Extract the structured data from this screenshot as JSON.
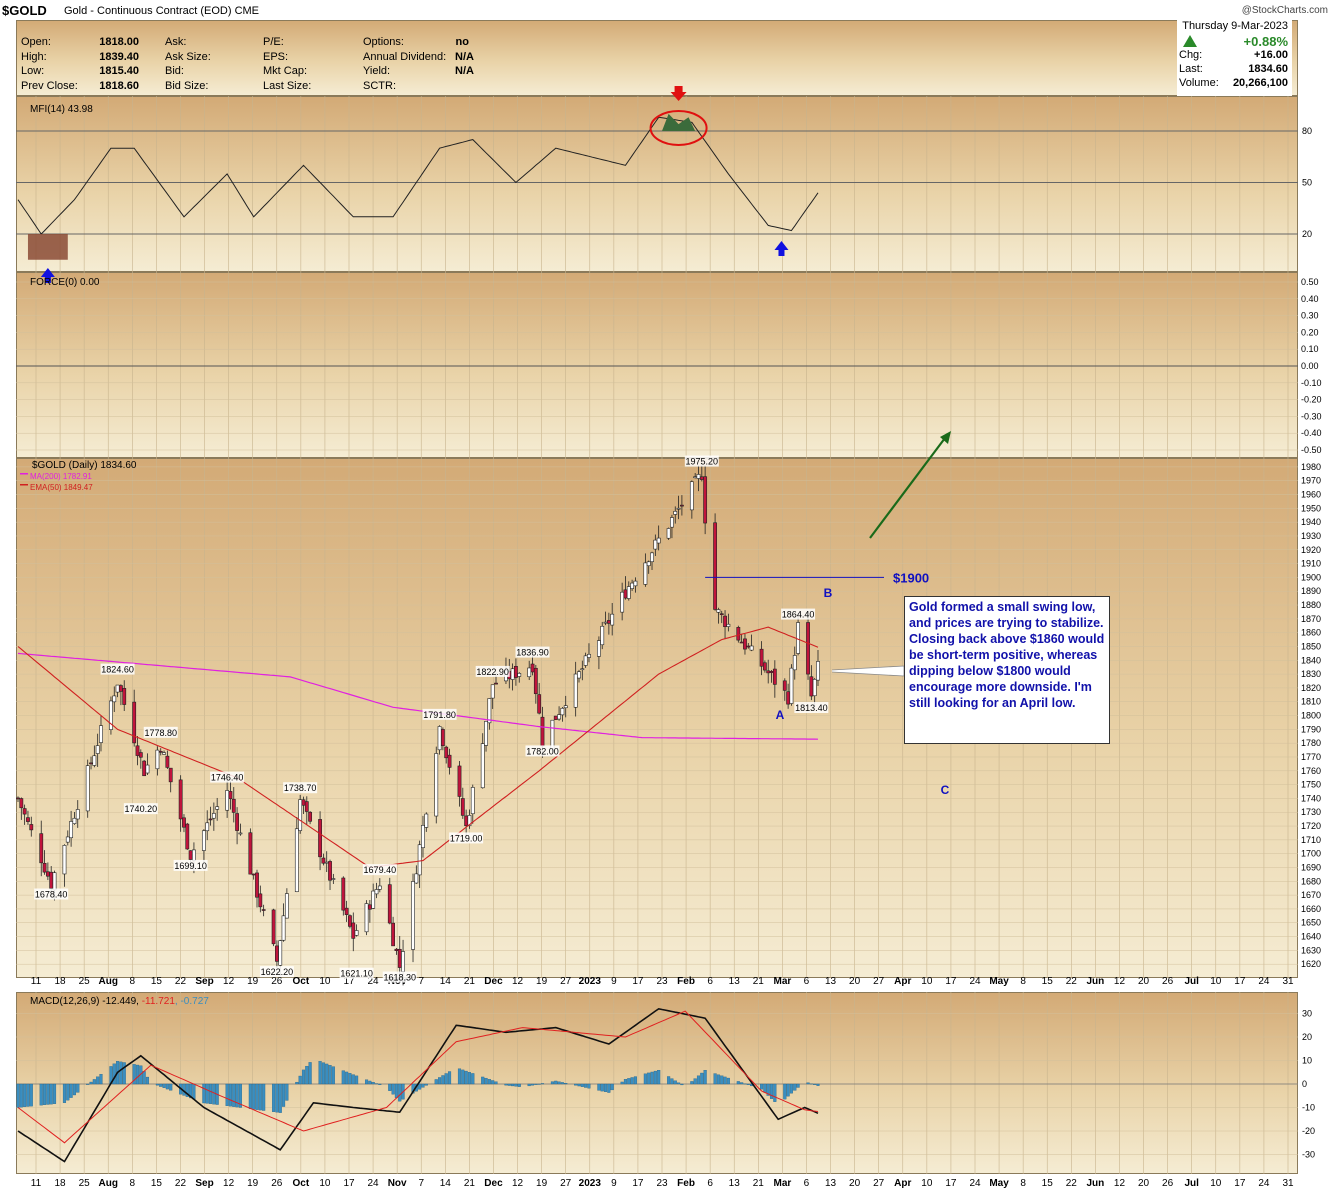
{
  "header": {
    "symbol": "$GOLD",
    "subtitle": "Gold - Continuous Contract (EOD) CME",
    "copyright": "@StockCharts.com"
  },
  "quote_left": [
    {
      "label": "Open:",
      "value": "1818.00"
    },
    {
      "label": "High:",
      "value": "1839.40"
    },
    {
      "label": "Low:",
      "value": "1815.40"
    },
    {
      "label": "Prev Close:",
      "value": "1818.60"
    }
  ],
  "quote_mid": [
    {
      "label": "Ask:",
      "value": ""
    },
    {
      "label": "Ask Size:",
      "value": ""
    },
    {
      "label": "Bid:",
      "value": ""
    },
    {
      "label": "Bid Size:",
      "value": ""
    }
  ],
  "quote_mid2": [
    {
      "label": "P/E:",
      "value": ""
    },
    {
      "label": "EPS:",
      "value": ""
    },
    {
      "label": "Mkt Cap:",
      "value": ""
    },
    {
      "label": "Last Size:",
      "value": ""
    }
  ],
  "quote_right": [
    {
      "label": "Options:",
      "value": "no"
    },
    {
      "label": "Annual Dividend:",
      "value": "N/A"
    },
    {
      "label": "Yield:",
      "value": "N/A"
    },
    {
      "label": "SCTR:",
      "value": ""
    }
  ],
  "quote_box": {
    "date": "Thursday  9-Mar-2023",
    "pct": "+0.88%",
    "chg_label": "Chg:",
    "chg": "+16.00",
    "last_label": "Last:",
    "last": "1834.60",
    "vol_label": "Volume:",
    "volume": "20,266,100",
    "up_color": "#2a8a2a"
  },
  "mfi": {
    "label": "MFI(14) 43.98",
    "levels": [
      80,
      50,
      20
    ],
    "ticks": [
      "80",
      "50",
      "20"
    ]
  },
  "force": {
    "label": "FORCE(0) 0.00",
    "ticks": [
      "0.50",
      "0.40",
      "0.30",
      "0.20",
      "0.10",
      "0.00",
      "-0.10",
      "-0.20",
      "-0.30",
      "-0.40",
      "-0.50"
    ]
  },
  "price": {
    "legend_main": "$GOLD (Daily) 1834.60",
    "legend_ma200": "MA(200) 1782.91",
    "legend_ema50": "EMA(50) 1849.47",
    "ma200_color": "#e020e0",
    "ema50_color": "#d02020",
    "up_color": "#ffffff",
    "down_color": "#c0143c",
    "level_1900": "$1900",
    "wave_b": "B",
    "wave_a": "A",
    "wave_c": "C",
    "annotations": [
      "1824.60",
      "1778.80",
      "1740.20",
      "1746.40",
      "1699.10",
      "1738.70",
      "1622.20",
      "1679.40",
      "1621.10",
      "1618.30",
      "1678.40",
      "1791.80",
      "1719.00",
      "1822.90",
      "1836.90",
      "1782.00",
      "1975.20",
      "1864.40",
      "1813.40"
    ],
    "note": "Gold formed a small swing low, and prices are trying to stabilize. Closing back above $1860 would be short-term positive, whereas dipping below $1800 would encourage more downside. I'm still looking for an April low."
  },
  "x_axis_labels": [
    "11",
    "18",
    "25",
    "Aug",
    "8",
    "15",
    "22",
    "Sep",
    "12",
    "19",
    "26",
    "Oct",
    "10",
    "17",
    "24",
    "Nov",
    "7",
    "14",
    "21",
    "Dec",
    "12",
    "19",
    "27",
    "2023",
    "9",
    "17",
    "23",
    "Feb",
    "6",
    "13",
    "21",
    "Mar",
    "6",
    "13",
    "20",
    "27",
    "Apr",
    "10",
    "17",
    "24",
    "May",
    "8",
    "15",
    "22",
    "Jun",
    "12",
    "20",
    "26",
    "Jul",
    "10",
    "17",
    "24",
    "31"
  ],
  "macd": {
    "label_main": "MACD(12,26,9) -12.449, ",
    "label_signal": "-11.721",
    "label_hist": ", -0.727",
    "ticks": [
      "30",
      "20",
      "10",
      "0",
      "-10",
      "-20",
      "-30"
    ],
    "signal_color": "#e02020",
    "hist_color": "#3a8ec0"
  },
  "chart_data": {
    "type": "line",
    "title": "$GOLD (Daily) 1834.60",
    "price_ylim": [
      1610,
      1985
    ],
    "x_start": "2022-07-11",
    "x_end": "2023-07-31",
    "last_bar_date": "2023-03-09",
    "price_swings": [
      {
        "date": "2022-07-11",
        "value": 1740
      },
      {
        "date": "2022-07-21",
        "value": 1678.4
      },
      {
        "date": "2022-08-10",
        "value": 1824.6
      },
      {
        "date": "2022-08-18",
        "value": 1760
      },
      {
        "date": "2022-08-23",
        "value": 1778.8
      },
      {
        "date": "2022-09-01",
        "value": 1699.1
      },
      {
        "date": "2022-09-12",
        "value": 1746.4
      },
      {
        "date": "2022-09-27",
        "value": 1622.2
      },
      {
        "date": "2022-10-04",
        "value": 1738.7
      },
      {
        "date": "2022-10-20",
        "value": 1640
      },
      {
        "date": "2022-10-28",
        "value": 1679.4
      },
      {
        "date": "2022-11-03",
        "value": 1618.3
      },
      {
        "date": "2022-11-15",
        "value": 1791.8
      },
      {
        "date": "2022-11-23",
        "value": 1719
      },
      {
        "date": "2022-12-01",
        "value": 1822.9
      },
      {
        "date": "2022-12-13",
        "value": 1836.9
      },
      {
        "date": "2022-12-16",
        "value": 1782
      },
      {
        "date": "2023-01-10",
        "value": 1890
      },
      {
        "date": "2023-02-02",
        "value": 1975.2
      },
      {
        "date": "2023-02-05",
        "value": 1880
      },
      {
        "date": "2023-02-28",
        "value": 1813.4
      },
      {
        "date": "2023-03-03",
        "value": 1864.4
      },
      {
        "date": "2023-03-07",
        "value": 1813.4
      },
      {
        "date": "2023-03-09",
        "value": 1834.6
      }
    ],
    "ma200": [
      {
        "date": "2022-07-11",
        "value": 1845
      },
      {
        "date": "2022-10-01",
        "value": 1828
      },
      {
        "date": "2022-11-01",
        "value": 1806
      },
      {
        "date": "2022-12-15",
        "value": 1792
      },
      {
        "date": "2023-01-15",
        "value": 1784
      },
      {
        "date": "2023-03-09",
        "value": 1782.91
      }
    ],
    "ema50": [
      {
        "date": "2022-07-11",
        "value": 1850
      },
      {
        "date": "2022-08-10",
        "value": 1790
      },
      {
        "date": "2022-09-15",
        "value": 1755
      },
      {
        "date": "2022-10-25",
        "value": 1690
      },
      {
        "date": "2022-11-10",
        "value": 1695
      },
      {
        "date": "2022-12-15",
        "value": 1760
      },
      {
        "date": "2023-01-20",
        "value": 1830
      },
      {
        "date": "2023-02-08",
        "value": 1855
      },
      {
        "date": "2023-02-22",
        "value": 1864
      },
      {
        "date": "2023-03-09",
        "value": 1849.47
      }
    ],
    "mfi_ylim": [
      0,
      100
    ],
    "mfi": [
      {
        "date": "2022-07-11",
        "value": 40
      },
      {
        "date": "2022-07-18",
        "value": 20
      },
      {
        "date": "2022-07-28",
        "value": 40
      },
      {
        "date": "2022-08-08",
        "value": 70
      },
      {
        "date": "2022-08-15",
        "value": 70
      },
      {
        "date": "2022-08-30",
        "value": 30
      },
      {
        "date": "2022-09-12",
        "value": 55
      },
      {
        "date": "2022-09-20",
        "value": 30
      },
      {
        "date": "2022-10-05",
        "value": 60
      },
      {
        "date": "2022-10-20",
        "value": 30
      },
      {
        "date": "2022-11-01",
        "value": 30
      },
      {
        "date": "2022-11-15",
        "value": 70
      },
      {
        "date": "2022-11-25",
        "value": 75
      },
      {
        "date": "2022-12-08",
        "value": 50
      },
      {
        "date": "2022-12-20",
        "value": 70
      },
      {
        "date": "2023-01-10",
        "value": 60
      },
      {
        "date": "2023-01-20",
        "value": 88
      },
      {
        "date": "2023-01-30",
        "value": 85
      },
      {
        "date": "2023-02-10",
        "value": 55
      },
      {
        "date": "2023-02-22",
        "value": 25
      },
      {
        "date": "2023-03-01",
        "value": 22
      },
      {
        "date": "2023-03-09",
        "value": 43.98
      }
    ],
    "macd_ylim": [
      -35,
      35
    ],
    "macd": [
      {
        "date": "2022-07-11",
        "value": -20
      },
      {
        "date": "2022-07-25",
        "value": -33
      },
      {
        "date": "2022-08-10",
        "value": 5
      },
      {
        "date": "2022-08-17",
        "value": 12
      },
      {
        "date": "2022-09-05",
        "value": -10
      },
      {
        "date": "2022-09-28",
        "value": -28
      },
      {
        "date": "2022-10-08",
        "value": -8
      },
      {
        "date": "2022-10-20",
        "value": -10
      },
      {
        "date": "2022-11-03",
        "value": -12
      },
      {
        "date": "2022-11-20",
        "value": 25
      },
      {
        "date": "2022-12-05",
        "value": 22
      },
      {
        "date": "2022-12-20",
        "value": 24
      },
      {
        "date": "2023-01-05",
        "value": 17
      },
      {
        "date": "2023-01-20",
        "value": 32
      },
      {
        "date": "2023-02-03",
        "value": 28
      },
      {
        "date": "2023-02-25",
        "value": -15
      },
      {
        "date": "2023-03-05",
        "value": -10
      },
      {
        "date": "2023-03-09",
        "value": -12.449
      }
    ],
    "macd_signal": [
      {
        "date": "2022-07-11",
        "value": -10
      },
      {
        "date": "2022-07-25",
        "value": -25
      },
      {
        "date": "2022-08-20",
        "value": 8
      },
      {
        "date": "2022-09-10",
        "value": -5
      },
      {
        "date": "2022-10-05",
        "value": -20
      },
      {
        "date": "2022-10-30",
        "value": -10
      },
      {
        "date": "2022-11-20",
        "value": 18
      },
      {
        "date": "2022-12-10",
        "value": 24
      },
      {
        "date": "2023-01-10",
        "value": 20
      },
      {
        "date": "2023-01-28",
        "value": 31
      },
      {
        "date": "2023-02-20",
        "value": -3
      },
      {
        "date": "2023-03-05",
        "value": -11
      },
      {
        "date": "2023-03-09",
        "value": -11.721
      }
    ],
    "macd_histogram_last": -0.727
  }
}
